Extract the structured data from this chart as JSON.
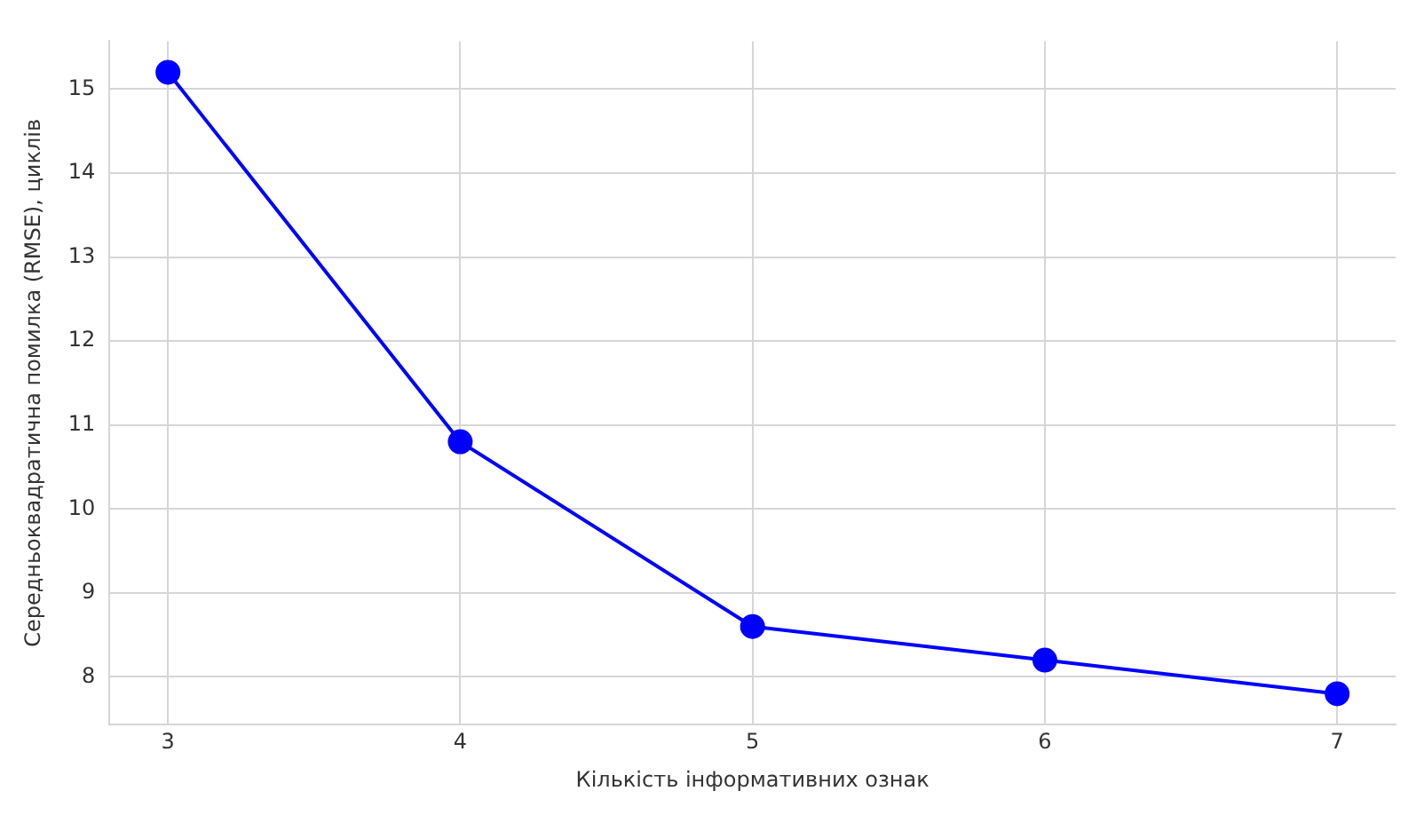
{
  "chart_data": {
    "type": "line",
    "xlabel": "Кількість інформативних ознак",
    "ylabel": "Середньоквадратична помилка (RMSE), циклів",
    "x": [
      3,
      4,
      5,
      6,
      7
    ],
    "series": [
      {
        "color": "#0000ff",
        "values": [
          15.2,
          10.8,
          8.6,
          8.2,
          7.8
        ]
      }
    ],
    "xlim": [
      2.8,
      7.2
    ],
    "xticks": [
      3,
      4,
      5,
      6,
      7
    ],
    "ylim": [
      7.43,
      15.57
    ],
    "yticks": [
      8,
      9,
      10,
      11,
      12,
      13,
      14,
      15
    ],
    "grid": true,
    "marker": "circle",
    "line_style": "solid",
    "legend": false
  }
}
